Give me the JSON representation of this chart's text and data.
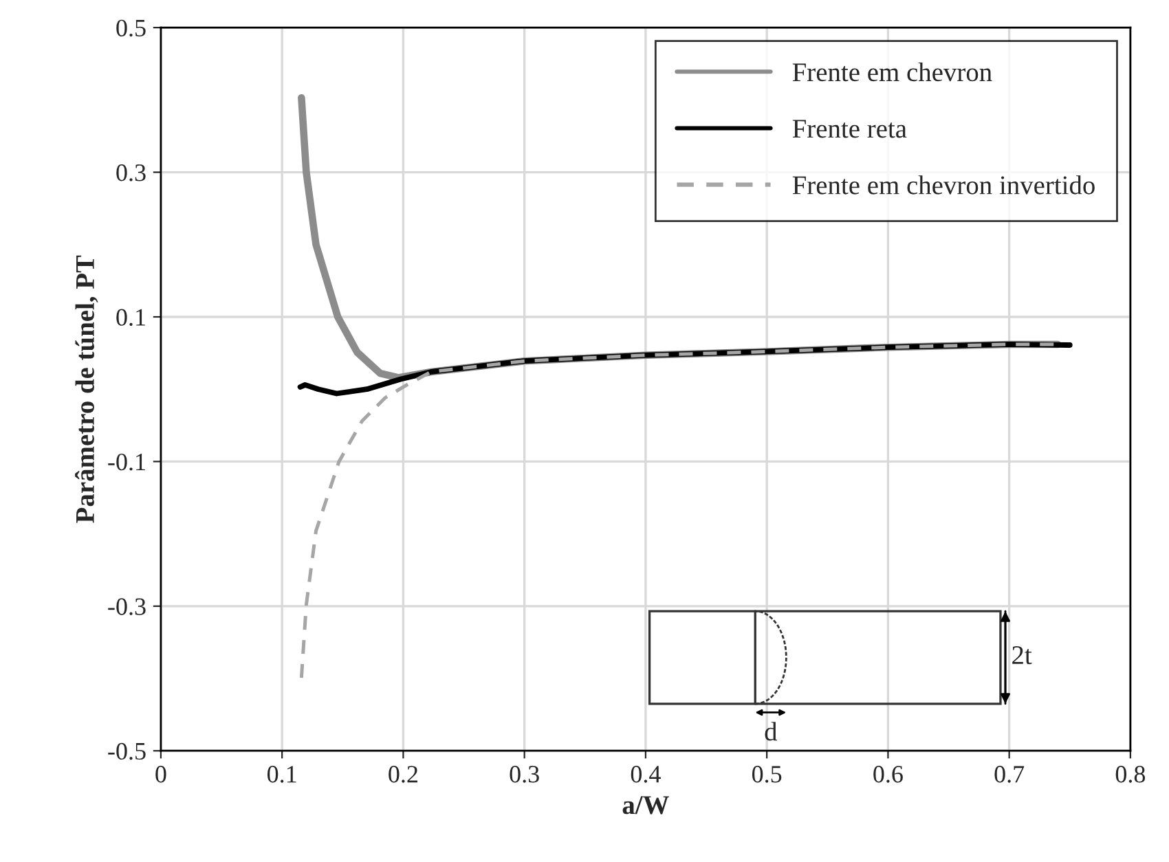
{
  "chart_data": {
    "type": "line",
    "xlabel": "a/W",
    "ylabel": "Parâmetro de túnel, PT",
    "xlim": [
      0,
      0.8
    ],
    "xticks": [
      0,
      0.1,
      0.2,
      0.3,
      0.4,
      0.5,
      0.6,
      0.7,
      0.8
    ],
    "ylim": [
      -0.5,
      0.5
    ],
    "yticks": [
      -0.5,
      -0.3,
      -0.1,
      0.1,
      0.3,
      0.5
    ],
    "grid": true,
    "legend": "top right",
    "marker": "none",
    "annotations": [
      "2t",
      "d"
    ],
    "series": [
      {
        "name": "Frente em chevron",
        "color": "#8c8c8c",
        "line_style": "solid",
        "x": [
          0.116,
          0.12,
          0.128,
          0.146,
          0.162,
          0.181,
          0.196,
          0.223,
          0.3,
          0.4,
          0.5,
          0.6,
          0.7,
          0.74
        ],
        "values": [
          0.403,
          0.3,
          0.2,
          0.1,
          0.051,
          0.022,
          0.016,
          0.024,
          0.039,
          0.047,
          0.052,
          0.058,
          0.062,
          0.062
        ]
      },
      {
        "name": "Frente reta",
        "color": "#000000",
        "line_style": "solid",
        "x": [
          0.115,
          0.119,
          0.13,
          0.145,
          0.17,
          0.198,
          0.223,
          0.3,
          0.4,
          0.5,
          0.6,
          0.7,
          0.75
        ],
        "values": [
          0.003,
          0.006,
          0.0,
          -0.006,
          0.0,
          0.014,
          0.024,
          0.039,
          0.047,
          0.052,
          0.058,
          0.062,
          0.061
        ]
      },
      {
        "name": "Frente em chevron invertido",
        "color": "#a6a6a6",
        "line_style": "dashed",
        "x": [
          0.116,
          0.12,
          0.128,
          0.147,
          0.166,
          0.185,
          0.204,
          0.223,
          0.3,
          0.4,
          0.5,
          0.6,
          0.7,
          0.74
        ],
        "values": [
          -0.399,
          -0.298,
          -0.196,
          -0.1,
          -0.044,
          -0.012,
          0.007,
          0.024,
          0.039,
          0.047,
          0.052,
          0.058,
          0.062,
          0.062
        ]
      }
    ]
  }
}
